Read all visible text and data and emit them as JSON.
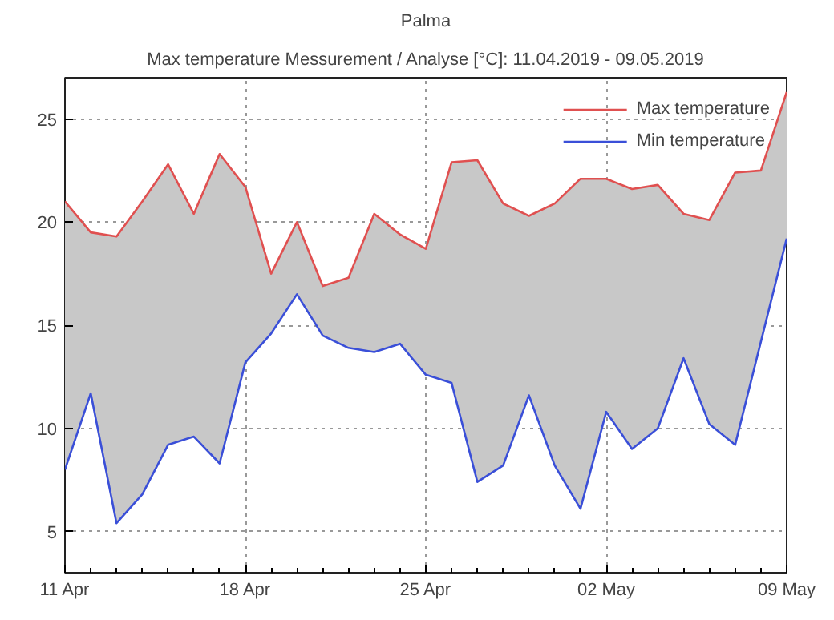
{
  "chart_data": {
    "type": "line",
    "title": "Palma",
    "subtitle": "Max temperature Messurement / Analyse [°C]: 11.04.2019 - 09.05.2019",
    "x": [
      "2019-04-11",
      "2019-04-12",
      "2019-04-13",
      "2019-04-14",
      "2019-04-15",
      "2019-04-16",
      "2019-04-17",
      "2019-04-18",
      "2019-04-19",
      "2019-04-20",
      "2019-04-21",
      "2019-04-22",
      "2019-04-23",
      "2019-04-24",
      "2019-04-25",
      "2019-04-26",
      "2019-04-27",
      "2019-04-28",
      "2019-04-29",
      "2019-04-30",
      "2019-05-01",
      "2019-05-02",
      "2019-05-03",
      "2019-05-04",
      "2019-05-05",
      "2019-05-06",
      "2019-05-07",
      "2019-05-08",
      "2019-05-09"
    ],
    "series": [
      {
        "name": "Max temperature",
        "type": "area",
        "color": "#e05050",
        "values": [
          21.0,
          19.5,
          19.3,
          21.0,
          22.8,
          20.4,
          23.3,
          21.7,
          17.5,
          20.0,
          16.9,
          17.3,
          20.4,
          19.4,
          18.7,
          22.9,
          23.0,
          20.9,
          20.3,
          20.9,
          22.1,
          22.1,
          21.6,
          21.8,
          20.4,
          20.1,
          22.4,
          22.5,
          26.3
        ]
      },
      {
        "name": "Min temperature",
        "color": "#3a4fd8",
        "values": [
          8.0,
          11.7,
          5.4,
          6.8,
          9.2,
          9.6,
          8.3,
          13.2,
          14.6,
          16.5,
          14.5,
          13.9,
          13.7,
          14.1,
          12.6,
          12.2,
          7.4,
          8.2,
          11.6,
          8.2,
          6.1,
          10.8,
          9.0,
          10.0,
          13.4,
          10.2,
          9.2,
          14.2,
          19.2
        ]
      }
    ],
    "xlim": [
      "2019-04-11",
      "2019-05-09"
    ],
    "ylim": [
      3,
      27
    ],
    "xticks": [
      {
        "value": "2019-04-11",
        "label": "11 Apr"
      },
      {
        "value": "2019-04-18",
        "label": "18 Apr"
      },
      {
        "value": "2019-04-25",
        "label": "25 Apr"
      },
      {
        "value": "2019-05-02",
        "label": "02 May"
      },
      {
        "value": "2019-05-09",
        "label": "09 May"
      }
    ],
    "yticks": [
      5,
      10,
      15,
      20,
      25
    ],
    "grid": true,
    "legend": "top right",
    "line_style": "solid"
  }
}
